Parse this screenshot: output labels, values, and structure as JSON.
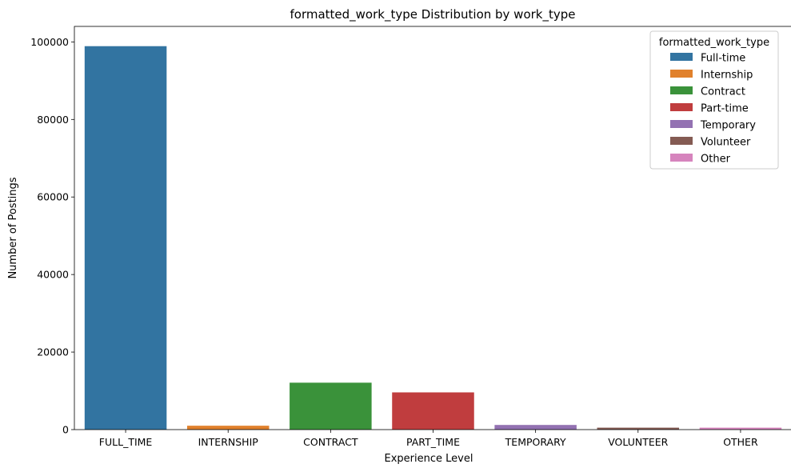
{
  "chart_data": {
    "type": "bar",
    "title": "formatted_work_type Distribution by work_type",
    "xlabel": "Experience Level",
    "ylabel": "Number of Postings",
    "categories": [
      "FULL_TIME",
      "INTERNSHIP",
      "CONTRACT",
      "PART_TIME",
      "TEMPORARY",
      "VOLUNTEER",
      "OTHER"
    ],
    "values": [
      98900,
      1000,
      12100,
      9600,
      1200,
      500,
      500
    ],
    "series_labels": [
      "Full-time",
      "Internship",
      "Contract",
      "Part-time",
      "Temporary",
      "Volunteer",
      "Other"
    ],
    "colors": [
      "#3274a1",
      "#e1812c",
      "#3a923a",
      "#c03d3e",
      "#9372b2",
      "#845b53",
      "#d684bd"
    ],
    "ylim": [
      0,
      104000
    ],
    "yticks": [
      0,
      20000,
      40000,
      60000,
      80000,
      100000
    ],
    "grid": false,
    "legend": {
      "title": "formatted_work_type",
      "placement": "top-right"
    }
  }
}
